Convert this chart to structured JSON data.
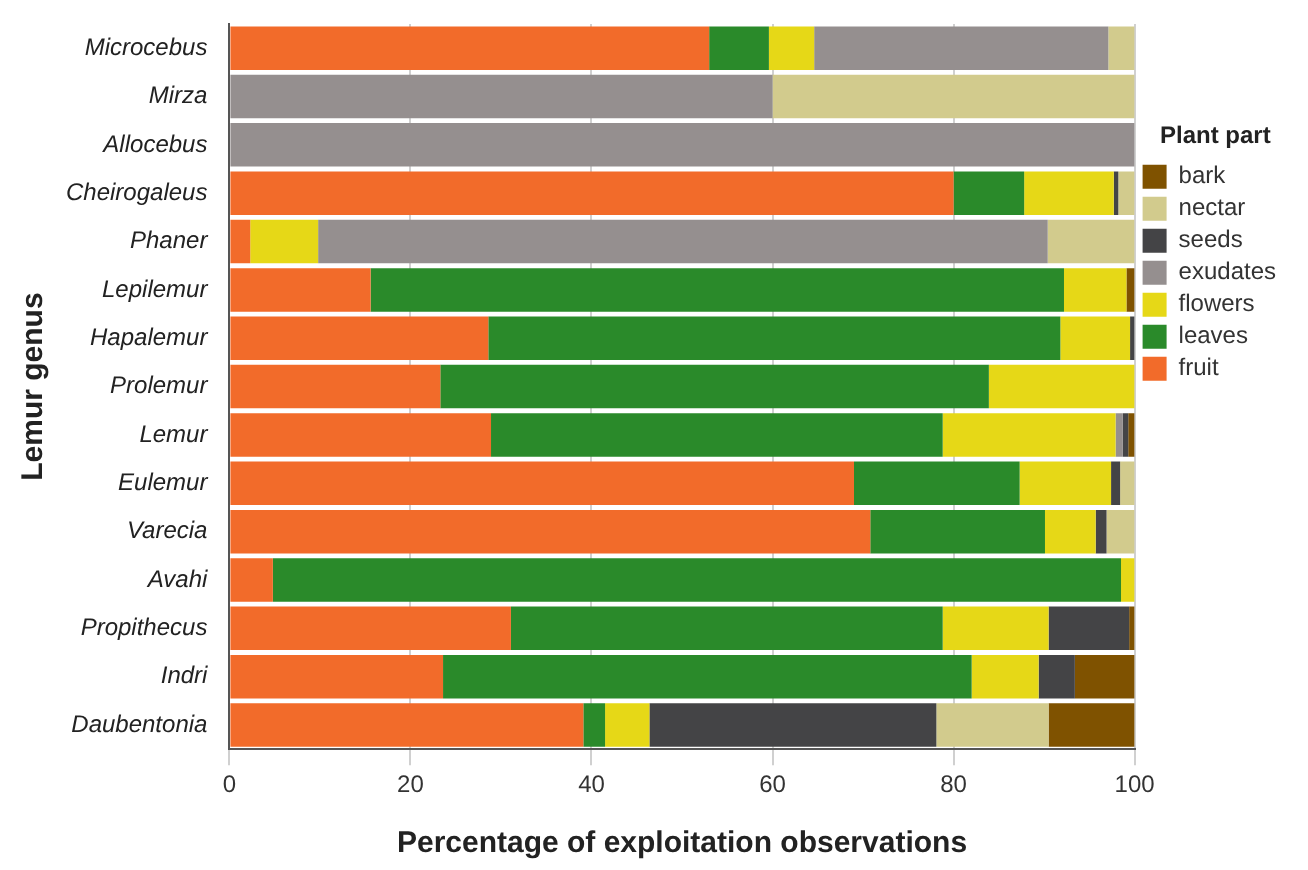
{
  "chart_data": {
    "type": "bar",
    "orientation": "horizontal",
    "stacked": true,
    "xlabel": "Percentage of exploitation observations",
    "ylabel": "Lemur genus",
    "legend_title": "Plant part",
    "legend": "right",
    "categories": [
      "Microcebus",
      "Mirza",
      "Allocebus",
      "Cheirogaleus",
      "Phaner",
      "Lepilemur",
      "Hapalemur",
      "Prolemur",
      "Lemur",
      "Eulemur",
      "Varecia",
      "Avahi",
      "Propithecus",
      "Indri",
      "Daubentonia"
    ],
    "xlim": [
      0,
      100
    ],
    "xticks": [
      0,
      20,
      40,
      60,
      80,
      100
    ],
    "grid": "x",
    "series": [
      {
        "name": "fruit",
        "color": "#f26b2a",
        "values": [
          53,
          0,
          0,
          80,
          2.3,
          15.6,
          28.6,
          23.3,
          28.9,
          69,
          70.8,
          4.8,
          31.1,
          23.6,
          39.1
        ]
      },
      {
        "name": "leaves",
        "color": "#2a8a2a",
        "values": [
          6.6,
          0,
          0,
          7.8,
          0,
          76.6,
          63.2,
          60.6,
          49.9,
          18.3,
          19.3,
          93.7,
          47.7,
          58.4,
          2.4
        ]
      },
      {
        "name": "flowers",
        "color": "#e6d817",
        "values": [
          5,
          0,
          0,
          9.9,
          7.5,
          6.9,
          7.7,
          16.1,
          19.1,
          10.1,
          5.6,
          1.5,
          11.7,
          7.4,
          4.9
        ]
      },
      {
        "name": "exudates",
        "color": "#958f8f",
        "values": [
          32.5,
          60,
          100,
          0,
          80.6,
          0,
          0,
          0,
          0.8,
          0,
          0,
          0,
          0,
          0,
          0
        ]
      },
      {
        "name": "seeds",
        "color": "#444446",
        "values": [
          0,
          0,
          0,
          0.5,
          0,
          0,
          0.5,
          0,
          0.6,
          1,
          1.2,
          0,
          8.9,
          4,
          31.7
        ]
      },
      {
        "name": "nectar",
        "color": "#d2cb8d",
        "values": [
          2.9,
          40,
          0,
          1.8,
          9.6,
          0,
          0,
          0,
          0,
          1.6,
          3.1,
          0,
          0,
          0,
          12.4
        ]
      },
      {
        "name": "bark",
        "color": "#7f5200",
        "values": [
          0,
          0,
          0,
          0,
          0,
          0.9,
          0,
          0,
          0.7,
          0,
          0,
          0,
          0.6,
          6.6,
          9.5
        ]
      }
    ]
  }
}
